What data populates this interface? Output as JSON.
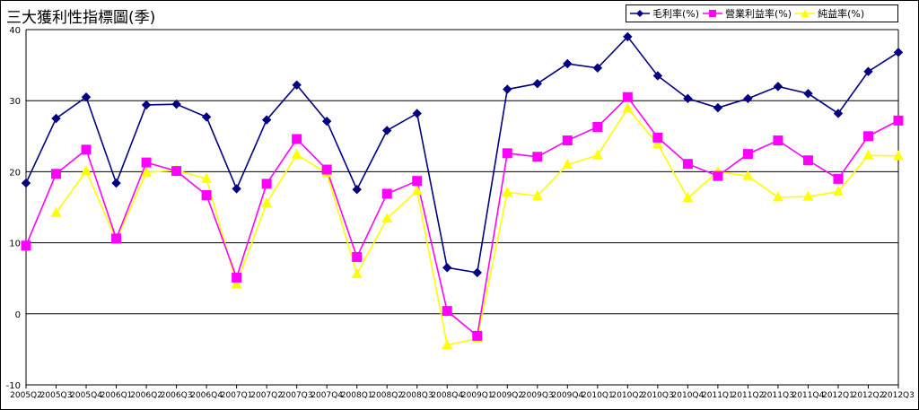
{
  "chart_data": {
    "type": "line",
    "title": "三大獲利性指標圖(季)",
    "xlabel": "",
    "ylabel": "",
    "ylim": [
      -10,
      40
    ],
    "yticks": [
      -10,
      0,
      10,
      20,
      30,
      40
    ],
    "grid": "horizontal",
    "legend_position": "top-right",
    "x": [
      "2005Q2",
      "2005Q3",
      "2005Q4",
      "2006Q1",
      "2006Q2",
      "2006Q3",
      "2006Q4",
      "2007Q1",
      "2007Q2",
      "2007Q3",
      "2007Q4",
      "2008Q1",
      "2008Q2",
      "2008Q3",
      "2008Q4",
      "2009Q1",
      "2009Q2",
      "2009Q3",
      "2009Q4",
      "2010Q1",
      "2010Q2",
      "2010Q3",
      "2010Q4",
      "2011Q1",
      "2011Q2",
      "2011Q3",
      "2011Q4",
      "2012Q1",
      "2012Q2",
      "2012Q3"
    ],
    "series": [
      {
        "name": "毛利率(%)",
        "color": "#000080",
        "marker": "diamond",
        "values": [
          18.4,
          27.5,
          30.5,
          18.4,
          29.4,
          29.5,
          27.7,
          17.6,
          27.3,
          32.2,
          27.1,
          17.5,
          25.8,
          28.2,
          6.5,
          5.8,
          31.6,
          32.4,
          35.2,
          34.6,
          39.0,
          33.5,
          30.3,
          29.0,
          30.3,
          32.0,
          31.0,
          28.2,
          34.1,
          36.8
        ]
      },
      {
        "name": "營業利益率(%)",
        "color": "#ff00ff",
        "marker": "square",
        "values": [
          9.6,
          19.7,
          23.1,
          10.6,
          21.3,
          20.1,
          16.7,
          5.1,
          18.3,
          24.6,
          20.3,
          8.0,
          16.9,
          18.7,
          0.4,
          -3.1,
          22.6,
          22.1,
          24.4,
          26.3,
          30.5,
          24.8,
          21.1,
          19.4,
          22.5,
          24.4,
          21.6,
          19.0,
          25.0,
          27.2
        ]
      },
      {
        "name": "純益率(%)",
        "color": "#ffff00",
        "marker": "triangle",
        "values": [
          null,
          14.2,
          20.1,
          10.4,
          19.9,
          20.2,
          19.0,
          4.2,
          15.6,
          22.4,
          19.8,
          5.6,
          13.4,
          17.3,
          -4.4,
          -3.5,
          17.1,
          16.6,
          21.0,
          22.3,
          28.9,
          23.9,
          16.3,
          20.0,
          19.4,
          16.4,
          16.5,
          17.2,
          22.3,
          22.2
        ]
      }
    ]
  }
}
